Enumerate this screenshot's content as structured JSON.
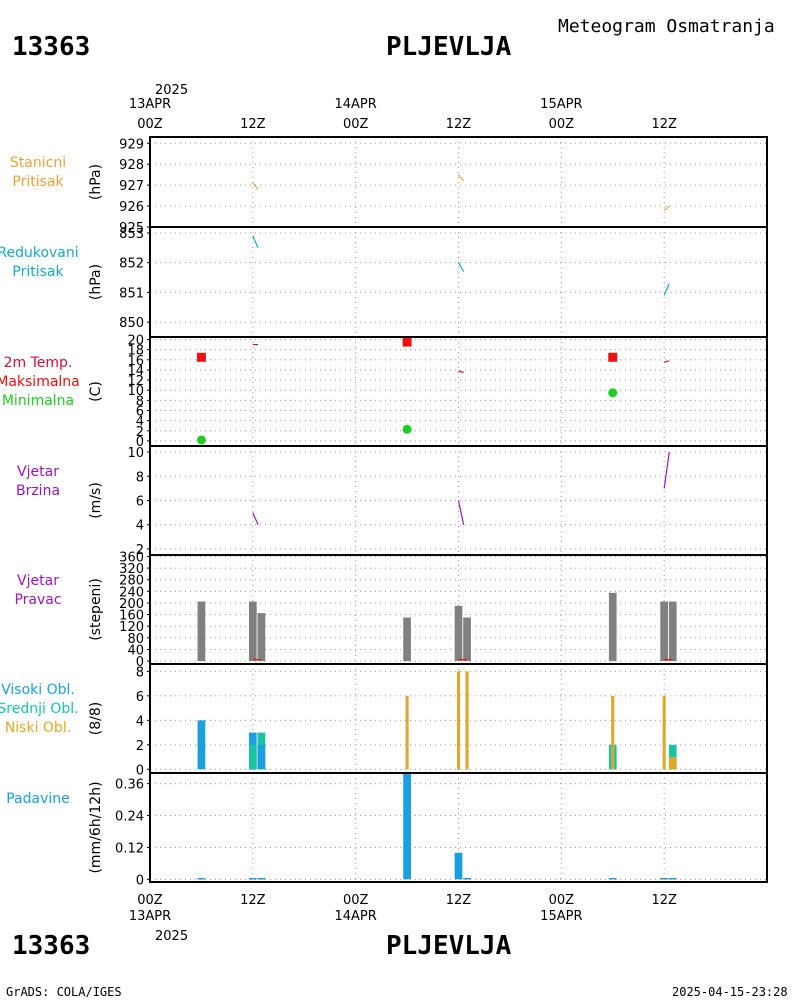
{
  "station": {
    "id": "13363",
    "name": "PLJEVLJA",
    "meteogram_title": "Meteogram Osmatranja"
  },
  "footer": {
    "left": "GrADS: COLA/IGES",
    "right": "2025-04-15-23:28"
  },
  "time_axis": {
    "year": "2025",
    "range_hours": [
      0,
      72
    ],
    "ticks": [
      {
        "hour": 0,
        "hour_label": "00Z",
        "date_label": "13APR"
      },
      {
        "hour": 12,
        "hour_label": "12Z",
        "date_label": ""
      },
      {
        "hour": 24,
        "hour_label": "00Z",
        "date_label": "14APR"
      },
      {
        "hour": 36,
        "hour_label": "12Z",
        "date_label": ""
      },
      {
        "hour": 48,
        "hour_label": "00Z",
        "date_label": "15APR"
      },
      {
        "hour": 60,
        "hour_label": "12Z",
        "date_label": ""
      }
    ]
  },
  "colors": {
    "orange": "#e8a33c",
    "cyan": "#1aa9c9",
    "crimson": "#d0103a",
    "red": "#ee1111",
    "green": "#22cc22",
    "purple": "#9a18b5",
    "gray": "#808080",
    "blue": "#1a9fe0",
    "teal": "#19c5a0",
    "gold": "#e0a82a"
  },
  "chart_data": [
    {
      "id": "p1",
      "type": "line",
      "labels": [
        {
          "text": "Stanicni",
          "color": "#e8a33c"
        },
        {
          "text": "Pritisak",
          "color": "#e8a33c"
        }
      ],
      "ylabel": "(hPa)",
      "ylim": [
        925,
        929.3
      ],
      "yticks": [
        925,
        926,
        927,
        928,
        929
      ],
      "grid": true,
      "series": [
        {
          "color": "#e8a33c",
          "points": [
            [
              12,
              927.1
            ],
            [
              12.6,
              926.8
            ]
          ]
        },
        {
          "color": "#e8a33c",
          "points": [
            [
              36,
              927.5
            ],
            [
              36.6,
              927.2
            ]
          ]
        },
        {
          "color": "#e8a33c",
          "points": [
            [
              60,
              925.8
            ],
            [
              60.6,
              926.0
            ]
          ]
        }
      ]
    },
    {
      "id": "p2",
      "type": "line",
      "labels": [
        {
          "text": "Redukovani",
          "color": "#1aa9c9"
        },
        {
          "text": "Pritisak",
          "color": "#1aa9c9"
        }
      ],
      "ylabel": "(hPa)",
      "ylim": [
        849.5,
        853.2
      ],
      "yticks": [
        850,
        851,
        852,
        853
      ],
      "grid": true,
      "series": [
        {
          "color": "#1aa9c9",
          "points": [
            [
              12,
              852.9
            ],
            [
              12.6,
              852.5
            ]
          ]
        },
        {
          "color": "#1aa9c9",
          "points": [
            [
              36,
              852.0
            ],
            [
              36.6,
              851.7
            ]
          ]
        },
        {
          "color": "#1aa9c9",
          "points": [
            [
              60,
              850.9
            ],
            [
              60.6,
              851.3
            ]
          ]
        }
      ]
    },
    {
      "id": "p3",
      "type": "scatter",
      "labels": [
        {
          "text": "2m Temp.",
          "color": "#d0103a"
        },
        {
          "text": "Maksimalna",
          "color": "#ee1111"
        },
        {
          "text": "Minimalna",
          "color": "#22cc22"
        }
      ],
      "ylabel": "(C)",
      "ylim": [
        -1,
        20.5
      ],
      "yticks": [
        0,
        2,
        4,
        6,
        8,
        10,
        12,
        14,
        16,
        18,
        20
      ],
      "grid": true,
      "series": [
        {
          "color": "#d0103a",
          "points": [
            [
              12,
              19.0
            ],
            [
              12.6,
              19.0
            ]
          ]
        },
        {
          "color": "#d0103a",
          "points": [
            [
              36,
              13.8
            ],
            [
              36.6,
              13.5
            ]
          ]
        },
        {
          "color": "#d0103a",
          "points": [
            [
              60,
              15.5
            ],
            [
              60.6,
              15.8
            ]
          ]
        }
      ],
      "max_points": [
        [
          6,
          16.5
        ],
        [
          30,
          19.5
        ],
        [
          54,
          16.5
        ]
      ],
      "min_points": [
        [
          6,
          0.2
        ],
        [
          30,
          2.3
        ],
        [
          54,
          9.5
        ]
      ]
    },
    {
      "id": "p4",
      "type": "line",
      "labels": [
        {
          "text": "Vjetar",
          "color": "#9a18b5"
        },
        {
          "text": "Brzina",
          "color": "#9a18b5"
        }
      ],
      "ylabel": "(m/s)",
      "ylim": [
        1.5,
        10.5
      ],
      "yticks": [
        2,
        4,
        6,
        8,
        10
      ],
      "grid": true,
      "series": [
        {
          "color": "#9a18b5",
          "points": [
            [
              12,
              5.0
            ],
            [
              12.6,
              4.0
            ]
          ]
        },
        {
          "color": "#9a18b5",
          "points": [
            [
              36,
              6.0
            ],
            [
              36.6,
              4.0
            ]
          ]
        },
        {
          "color": "#9a18b5",
          "points": [
            [
              60,
              7.0
            ],
            [
              60.6,
              10.0
            ]
          ]
        }
      ]
    },
    {
      "id": "p5",
      "type": "bar",
      "labels": [
        {
          "text": "Vjetar",
          "color": "#9a18b5"
        },
        {
          "text": "Pravac",
          "color": "#9a18b5"
        }
      ],
      "ylabel": "(stepeni)",
      "ylim": [
        -10,
        365
      ],
      "yticks": [
        0,
        40,
        80,
        120,
        160,
        200,
        240,
        280,
        320,
        360
      ],
      "grid": true,
      "bar_width_h": 0.9,
      "bars": [
        {
          "x": 6,
          "v": 205,
          "color": "#808080"
        },
        {
          "x": 12,
          "v": 205,
          "color": "#808080"
        },
        {
          "x": 13,
          "v": 165,
          "color": "#808080"
        },
        {
          "x": 30,
          "v": 150,
          "color": "#808080"
        },
        {
          "x": 36,
          "v": 190,
          "color": "#808080"
        },
        {
          "x": 37,
          "v": 150,
          "color": "#808080"
        },
        {
          "x": 54,
          "v": 235,
          "color": "#808080"
        },
        {
          "x": 60,
          "v": 205,
          "color": "#808080"
        },
        {
          "x": 61,
          "v": 205,
          "color": "#808080"
        }
      ],
      "marks": [
        {
          "x": 12.5,
          "v": 5,
          "color": "#ee1111"
        },
        {
          "x": 36.5,
          "v": 5,
          "color": "#ee1111"
        },
        {
          "x": 60.5,
          "v": 5,
          "color": "#ee1111"
        }
      ]
    },
    {
      "id": "p6",
      "type": "bar",
      "labels": [
        {
          "text": "Visoki Obl.",
          "color": "#1a9fe0"
        },
        {
          "text": "Srednji Obl.",
          "color": "#19c5a0"
        },
        {
          "text": "Niski Obl.",
          "color": "#e0a82a"
        }
      ],
      "ylabel": "(8/8)",
      "ylim": [
        -0.3,
        8.6
      ],
      "yticks": [
        0,
        2,
        4,
        6,
        8
      ],
      "grid": true,
      "bar_width_h": 0.9,
      "bars": [
        {
          "x": 6,
          "v": 4,
          "color": "#1a9fe0"
        },
        {
          "x": 12,
          "v": 3,
          "color": "#1a9fe0"
        },
        {
          "x": 12,
          "v": 2,
          "color": "#19c5a0"
        },
        {
          "x": 13,
          "v": 3,
          "color": "#19c5a0"
        },
        {
          "x": 13,
          "v": 2,
          "color": "#1a9fe0"
        },
        {
          "x": 30,
          "v": 6,
          "color": "#e0a82a",
          "narrow": true
        },
        {
          "x": 36,
          "v": 8,
          "color": "#e0a82a",
          "narrow": true
        },
        {
          "x": 37,
          "v": 8,
          "color": "#e0a82a",
          "narrow": true
        },
        {
          "x": 54,
          "v": 2,
          "color": "#19c5a0"
        },
        {
          "x": 54,
          "v": 6,
          "color": "#e0a82a",
          "narrow": true
        },
        {
          "x": 60,
          "v": 6,
          "color": "#e0a82a",
          "narrow": true
        },
        {
          "x": 61,
          "v": 2,
          "color": "#19c5a0"
        },
        {
          "x": 61,
          "v": 1,
          "color": "#e0a82a"
        }
      ]
    },
    {
      "id": "p7",
      "type": "bar",
      "labels": [
        {
          "text": "Padavine",
          "color": "#1a9fe0"
        }
      ],
      "ylabel": "(mm/6h/12h)",
      "ylim": [
        -0.01,
        0.4
      ],
      "yticks": [
        0,
        0.12,
        0.24,
        0.36
      ],
      "grid": true,
      "bar_width_h": 0.9,
      "bars": [
        {
          "x": 6,
          "v": 0.005,
          "color": "#1a9fe0"
        },
        {
          "x": 12,
          "v": 0.005,
          "color": "#1a9fe0"
        },
        {
          "x": 13,
          "v": 0.005,
          "color": "#1a9fe0"
        },
        {
          "x": 30,
          "v": 0.4,
          "color": "#1a9fe0"
        },
        {
          "x": 36,
          "v": 0.1,
          "color": "#1a9fe0"
        },
        {
          "x": 37,
          "v": 0.005,
          "color": "#1a9fe0"
        },
        {
          "x": 54,
          "v": 0.005,
          "color": "#1a9fe0"
        },
        {
          "x": 60,
          "v": 0.005,
          "color": "#1a9fe0"
        },
        {
          "x": 61,
          "v": 0.005,
          "color": "#1a9fe0"
        }
      ]
    }
  ]
}
